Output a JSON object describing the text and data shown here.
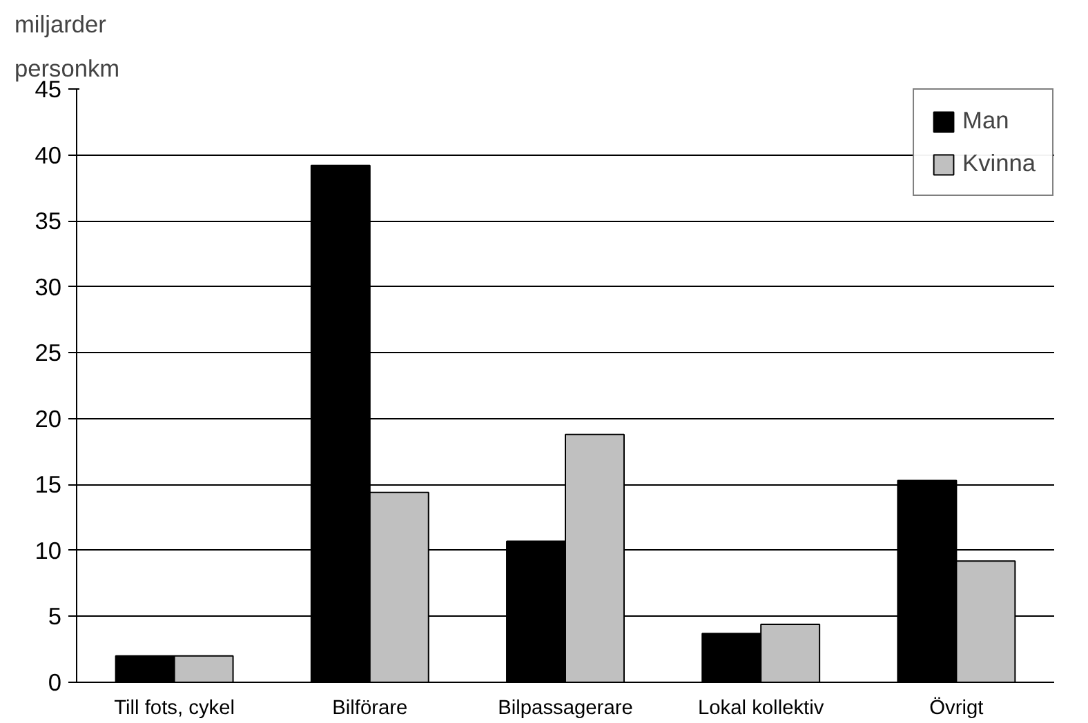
{
  "chart_data": {
    "type": "bar",
    "ylabel": "miljarder personkm",
    "categories": [
      "Till fots, cykel",
      "Bilförare",
      "Bilpassagerare",
      "Lokal kollektiv",
      "Övrigt"
    ],
    "series": [
      {
        "name": "Man",
        "color": "#000000",
        "values": [
          2.0,
          39.2,
          10.7,
          3.7,
          15.3
        ]
      },
      {
        "name": "Kvinna",
        "color": "#c0c0c0",
        "values": [
          2.0,
          14.4,
          18.8,
          4.4,
          9.2
        ]
      }
    ],
    "ylim": [
      0,
      45
    ],
    "yticks": [
      0,
      5,
      10,
      15,
      20,
      25,
      30,
      35,
      40,
      45
    ],
    "grid": "y",
    "legend": "top right"
  }
}
